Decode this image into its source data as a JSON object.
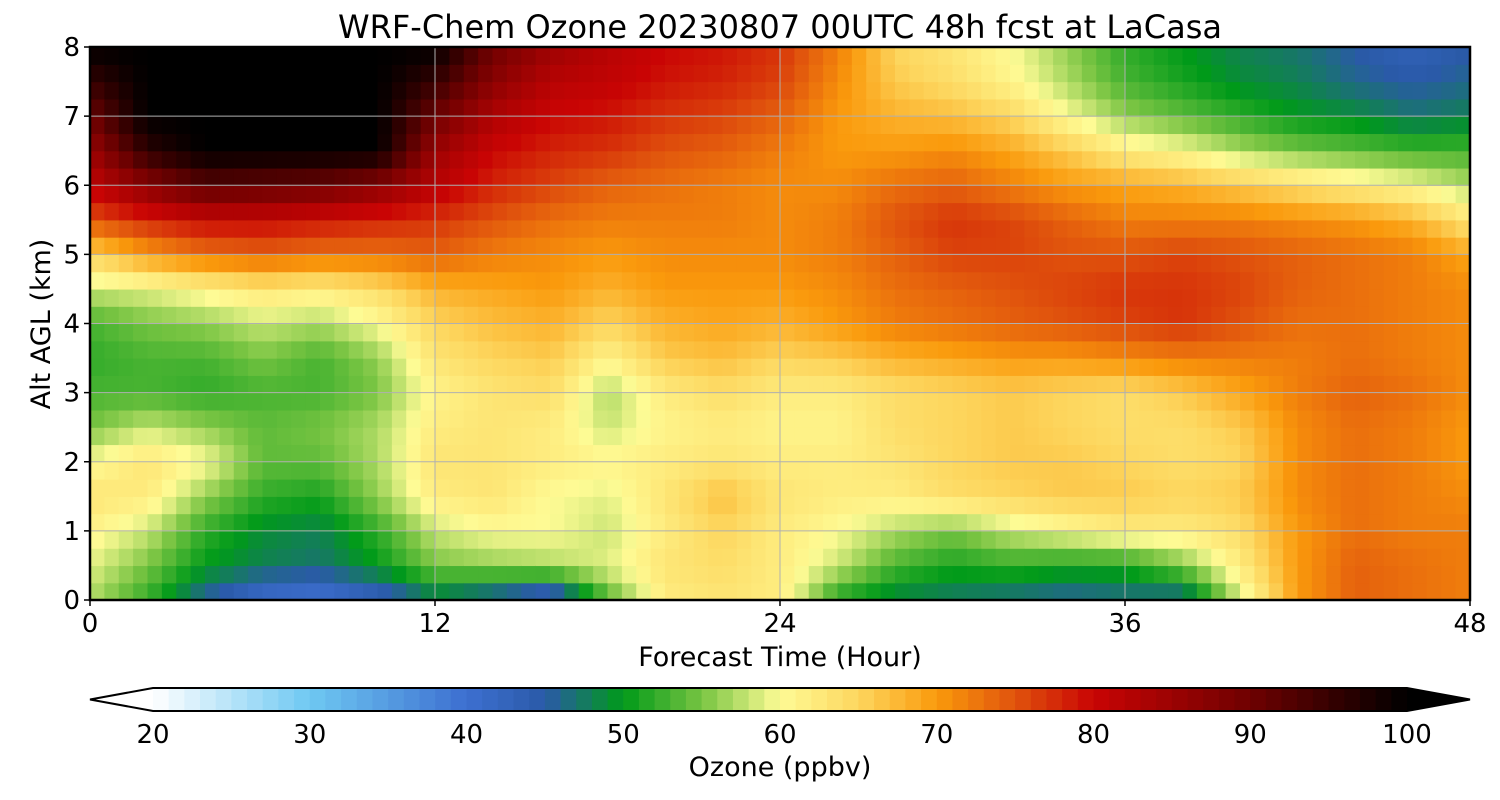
{
  "chart_data": {
    "type": "heatmap",
    "title": "WRF-Chem Ozone  20230807 00UTC 48h fcst at LaCasa",
    "xlabel": "Forecast Time (Hour)",
    "ylabel": "Alt AGL (km)",
    "xlim": [
      0,
      48
    ],
    "ylim": [
      0,
      8
    ],
    "x_ticks": [
      0,
      12,
      24,
      36,
      48
    ],
    "y_ticks": [
      0,
      1,
      2,
      3,
      4,
      5,
      6,
      7,
      8
    ],
    "grid": true,
    "x": [
      0,
      2,
      4,
      6,
      8,
      10,
      12,
      14,
      16,
      18,
      20,
      22,
      24,
      26,
      28,
      30,
      32,
      34,
      36,
      38,
      40,
      42,
      44,
      46,
      48
    ],
    "y": [
      0,
      0.5,
      1,
      1.5,
      2,
      2.5,
      3,
      3.5,
      4,
      4.5,
      5,
      5.5,
      6,
      6.5,
      7,
      7.5,
      8
    ],
    "z": [
      [
        57,
        52,
        45,
        40,
        39,
        42,
        47,
        44,
        40,
        53,
        62,
        63,
        62,
        51,
        48,
        47,
        46,
        45,
        46,
        45,
        58,
        70,
        74,
        73,
        72
      ],
      [
        59,
        55,
        50,
        48,
        47,
        50,
        55,
        56,
        57,
        59,
        63,
        64,
        62,
        58,
        53,
        51,
        52,
        51,
        51,
        55,
        62,
        70,
        74,
        73,
        72
      ],
      [
        61,
        58,
        52,
        49,
        48,
        52,
        58,
        60,
        60,
        58,
        62,
        65,
        62,
        60,
        57,
        55,
        58,
        60,
        62,
        62,
        64,
        70,
        73,
        72,
        72
      ],
      [
        63,
        62,
        56,
        52,
        51,
        56,
        62,
        63,
        60,
        59,
        63,
        67,
        63,
        62,
        62,
        64,
        65,
        66,
        66,
        65,
        66,
        71,
        73,
        72,
        71
      ],
      [
        60,
        63,
        60,
        54,
        54,
        57,
        63,
        63,
        62,
        61,
        62,
        63,
        62,
        62,
        63,
        65,
        66,
        66,
        65,
        64,
        65,
        71,
        73,
        72,
        70
      ],
      [
        55,
        58,
        56,
        54,
        55,
        57,
        62,
        63,
        62,
        58,
        61,
        62,
        61,
        61,
        64,
        65,
        66,
        65,
        64,
        64,
        66,
        71,
        73,
        72,
        70
      ],
      [
        53,
        53,
        52,
        53,
        53,
        55,
        61,
        63,
        64,
        57,
        62,
        64,
        62,
        62,
        64,
        65,
        66,
        65,
        64,
        66,
        69,
        72,
        74,
        73,
        71
      ],
      [
        52,
        53,
        53,
        55,
        53,
        56,
        63,
        65,
        66,
        61,
        66,
        67,
        65,
        66,
        68,
        69,
        70,
        70,
        71,
        72,
        72,
        72,
        73,
        72,
        71
      ],
      [
        53,
        55,
        56,
        58,
        57,
        60,
        65,
        67,
        68,
        65,
        68,
        69,
        68,
        70,
        72,
        73,
        74,
        75,
        76,
        77,
        75,
        73,
        73,
        72,
        71
      ],
      [
        58,
        59,
        61,
        63,
        62,
        64,
        68,
        69,
        70,
        68,
        70,
        70,
        70,
        71,
        73,
        74,
        75,
        76,
        77,
        77,
        76,
        74,
        73,
        72,
        71
      ],
      [
        65,
        70,
        73,
        74,
        73,
        73,
        74,
        72,
        71,
        70,
        71,
        71,
        71,
        72,
        74,
        76,
        76,
        75,
        75,
        76,
        75,
        74,
        73,
        72,
        69
      ],
      [
        75,
        78,
        80,
        80,
        79,
        78,
        77,
        75,
        73,
        72,
        72,
        72,
        71,
        72,
        75,
        77,
        76,
        74,
        72,
        72,
        72,
        71,
        70,
        68,
        63
      ],
      [
        81,
        87,
        92,
        91,
        90,
        87,
        82,
        78,
        76,
        74,
        73,
        72,
        71,
        71,
        73,
        74,
        72,
        70,
        69,
        68,
        66,
        64,
        62,
        60,
        57
      ],
      [
        85,
        96,
        100,
        100,
        100,
        100,
        85,
        80,
        78,
        77,
        75,
        74,
        72,
        70,
        70,
        71,
        69,
        66,
        62,
        60,
        57,
        55,
        54,
        53,
        53
      ],
      [
        90,
        100,
        100,
        100,
        100,
        100,
        90,
        83,
        80,
        79,
        77,
        76,
        74,
        70,
        68,
        67,
        65,
        60,
        56,
        54,
        52,
        50,
        49,
        47,
        48
      ],
      [
        95,
        100,
        100,
        100,
        100,
        100,
        95,
        87,
        82,
        81,
        79,
        78,
        76,
        71,
        66,
        64,
        61,
        57,
        53,
        51,
        49,
        48,
        46,
        45,
        46
      ],
      [
        100,
        100,
        100,
        100,
        100,
        100,
        100,
        90,
        85,
        82,
        80,
        79,
        77,
        72,
        65,
        63,
        60,
        56,
        52,
        50,
        48,
        47,
        45,
        43,
        45
      ]
    ],
    "colorbar": {
      "label": "Ozone  (ppbv)",
      "min": 20,
      "max": 100,
      "ticks": [
        20,
        30,
        40,
        50,
        60,
        70,
        80,
        90,
        100
      ],
      "extend": "both",
      "color_stops": [
        {
          "v": 20,
          "c": "#ffffff"
        },
        {
          "v": 30,
          "c": "#6ec8f2"
        },
        {
          "v": 40,
          "c": "#3d6fd0"
        },
        {
          "v": 45,
          "c": "#2a5aa8"
        },
        {
          "v": 50,
          "c": "#009a19"
        },
        {
          "v": 55,
          "c": "#78c442"
        },
        {
          "v": 60,
          "c": "#fefb95"
        },
        {
          "v": 65,
          "c": "#fdd65e"
        },
        {
          "v": 70,
          "c": "#fa9a0c"
        },
        {
          "v": 75,
          "c": "#e0530d"
        },
        {
          "v": 80,
          "c": "#c90404"
        },
        {
          "v": 90,
          "c": "#6e0101"
        },
        {
          "v": 100,
          "c": "#000000"
        }
      ]
    }
  }
}
